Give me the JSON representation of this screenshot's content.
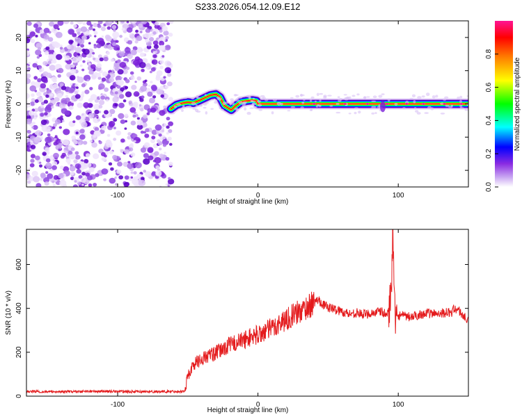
{
  "title": "S233.2026.054.12.09.E12",
  "chart_data": [
    {
      "type": "heatmap",
      "name": "spectrogram",
      "title": "S233.2026.054.12.09.E12",
      "xlabel": "Height of straight line (km)",
      "ylabel": "Frequency (Hz)",
      "xlim": [
        -165,
        150
      ],
      "ylim": [
        -25,
        25
      ],
      "xticks": [
        -100,
        0,
        100
      ],
      "yticks": [
        -20,
        -10,
        0,
        10,
        20
      ],
      "xtick_labels": [
        "-100",
        "0",
        "100"
      ],
      "ytick_labels": [
        "-20",
        "-10",
        "0",
        "10",
        "20"
      ],
      "noise_region_x": [
        -165,
        -62
      ],
      "signal_band": {
        "x": [
          -62,
          -58,
          -54,
          -50,
          -46,
          -42,
          -38,
          -34,
          -30,
          -27,
          -24,
          -21,
          -19,
          -16,
          -12,
          -8,
          -4,
          -1,
          0,
          150
        ],
        "freq": [
          -1.5,
          -0.3,
          0.2,
          0.5,
          0.3,
          1.0,
          1.8,
          2.6,
          2.9,
          2.0,
          -0.5,
          -1.3,
          -1.8,
          -0.6,
          0.6,
          0.9,
          1.1,
          0.9,
          0.0,
          0.0
        ]
      },
      "colorbar": {
        "label": "Normalized spectral amplitude",
        "min": 0,
        "max": 1,
        "ticks": [
          0.0,
          0.2,
          0.4,
          0.6,
          0.8
        ],
        "tick_labels": [
          "0.0",
          "0.2",
          "0.4",
          "0.6",
          "0.8"
        ],
        "colors": [
          "#ffffff",
          "#8a2be2",
          "#0000ff",
          "#00ffff",
          "#00ff00",
          "#ffff00",
          "#ff7f00",
          "#ff0000",
          "#ff1493"
        ]
      }
    },
    {
      "type": "line",
      "name": "snr",
      "xlabel": "Height of straight line (km)",
      "ylabel": "SNR (10 * v/v)",
      "xlim": [
        -165,
        150
      ],
      "ylim": [
        0,
        760
      ],
      "xticks": [
        -100,
        0,
        100
      ],
      "yticks": [
        0,
        200,
        400,
        600
      ],
      "xtick_labels": [
        "-100",
        "0",
        "100"
      ],
      "ytick_labels": [
        "0",
        "200",
        "400",
        "600"
      ],
      "color": "#e41a1c",
      "series": [
        {
          "name": "SNR",
          "x": [
            -165,
            -150,
            -130,
            -110,
            -90,
            -70,
            -52,
            -50,
            -45,
            -40,
            -35,
            -30,
            -25,
            -20,
            -15,
            -10,
            -5,
            0,
            5,
            10,
            15,
            20,
            25,
            30,
            35,
            40,
            43,
            47,
            50,
            55,
            60,
            65,
            70,
            75,
            80,
            85,
            88,
            90,
            92,
            94,
            95,
            96,
            97,
            98,
            100,
            102,
            105,
            110,
            115,
            120,
            125,
            130,
            135,
            138,
            140,
            143,
            146,
            150
          ],
          "values": [
            22,
            20,
            21,
            22,
            20,
            21,
            22,
            95,
            150,
            170,
            185,
            195,
            215,
            235,
            245,
            255,
            270,
            280,
            295,
            310,
            330,
            350,
            370,
            385,
            405,
            425,
            440,
            415,
            405,
            395,
            385,
            375,
            380,
            372,
            378,
            382,
            386,
            376,
            370,
            420,
            470,
            760,
            480,
            330,
            370,
            368,
            362,
            360,
            372,
            378,
            375,
            380,
            380,
            382,
            400,
            392,
            368,
            340
          ]
        }
      ]
    }
  ]
}
